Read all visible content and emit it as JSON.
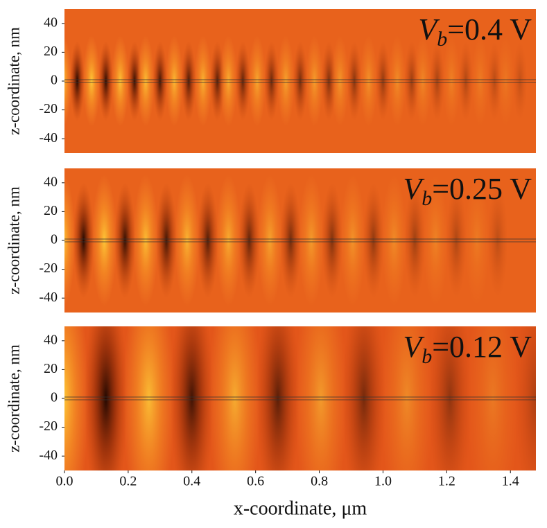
{
  "chart_data": [
    {
      "type": "heatmap",
      "annotation": {
        "main": "V",
        "sub": "b",
        "rest": "=0.4 V"
      },
      "ylabel": "z-coordinate, nm",
      "xlim": [
        0,
        1.48
      ],
      "ylim": [
        -50,
        50
      ],
      "yticks": [
        40,
        20,
        0,
        -20,
        -40
      ],
      "dark_x": [
        0.04,
        0.13,
        0.22,
        0.3,
        0.39,
        0.48,
        0.56,
        0.65,
        0.74,
        0.83,
        0.91,
        1.0,
        1.09,
        1.17,
        1.26,
        1.35,
        1.43
      ],
      "color": "#e8621c"
    },
    {
      "type": "heatmap",
      "annotation": {
        "main": "V",
        "sub": "b",
        "rest": "=0.25 V"
      },
      "ylabel": "z-coordinate, nm",
      "xlim": [
        0,
        1.48
      ],
      "ylim": [
        -50,
        50
      ],
      "yticks": [
        40,
        20,
        0,
        -20,
        -40
      ],
      "dark_x": [
        0.06,
        0.19,
        0.32,
        0.45,
        0.58,
        0.71,
        0.84,
        0.97,
        1.1,
        1.23,
        1.36
      ],
      "color": "#e8621c"
    },
    {
      "type": "heatmap",
      "annotation": {
        "main": "V",
        "sub": "b",
        "rest": "=0.12 V"
      },
      "ylabel": "z-coordinate, nm",
      "xlabel": "x-coordinate, μm",
      "xlim": [
        0,
        1.48
      ],
      "ylim": [
        -50,
        50
      ],
      "yticks": [
        40,
        20,
        0,
        -20,
        -40
      ],
      "xticks": [
        {
          "value": 0,
          "label": "0.0"
        },
        {
          "value": 0.2,
          "label": "0.2"
        },
        {
          "value": 0.4,
          "label": "0.4"
        },
        {
          "value": 0.6,
          "label": "0.6"
        },
        {
          "value": 0.8,
          "label": "0.8"
        },
        {
          "value": 1.0,
          "label": "1.0"
        },
        {
          "value": 1.2,
          "label": "1.2"
        },
        {
          "value": 1.4,
          "label": "1.4"
        }
      ],
      "dark_x": [
        0.13,
        0.4,
        0.67,
        0.94,
        1.21,
        1.48
      ],
      "color": "#e3561a"
    }
  ]
}
